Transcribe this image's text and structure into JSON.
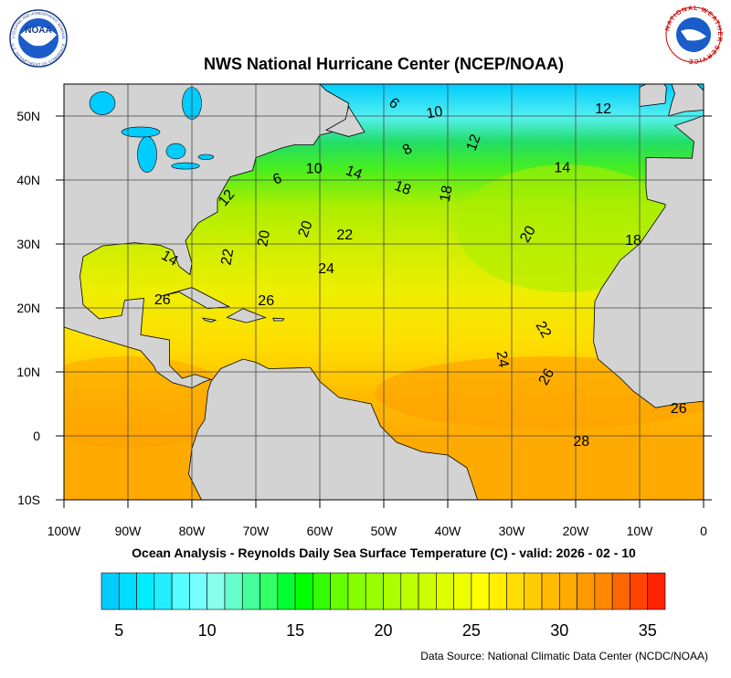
{
  "header": {
    "title": "NWS National Hurricane Center (NCEP/NOAA)",
    "noaa_logo_text": "NOAA",
    "noaa_ring_text": "NATIONAL OCEANIC AND ATMOSPHERIC ADMINISTRATION",
    "noaa_ring_text_bottom": "U.S. DEPARTMENT OF COMMERCE",
    "nws_ring_text": "NATIONAL WEATHER SERVICE"
  },
  "map": {
    "lat_labels": [
      "50N",
      "40N",
      "30N",
      "20N",
      "10N",
      "0",
      "10S"
    ],
    "lon_labels": [
      "100W",
      "90W",
      "80W",
      "70W",
      "60W",
      "50W",
      "40W",
      "30W",
      "20W",
      "10W",
      "0"
    ],
    "contour_labels": [
      "6",
      "10",
      "12",
      "8",
      "12",
      "10",
      "14",
      "6",
      "14",
      "18",
      "18",
      "12",
      "20",
      "22",
      "20",
      "20",
      "18",
      "22",
      "24",
      "26",
      "26",
      "22",
      "24",
      "26",
      "28",
      "26",
      "14"
    ],
    "caption": "Ocean Analysis - Reynolds Daily Sea Surface Temperature (C) - valid: 2026 - 02 - 10"
  },
  "colorbar": {
    "range": [
      4,
      36
    ],
    "ticks": [
      5,
      10,
      15,
      20,
      25,
      30,
      35
    ],
    "colors": [
      "#00ccff",
      "#00ddff",
      "#00eeff",
      "#22eeff",
      "#55ffff",
      "#77ffff",
      "#88ffee",
      "#66ffcc",
      "#44ff99",
      "#33ff66",
      "#00ff33",
      "#00ff00",
      "#33ff00",
      "#66ff00",
      "#88ff00",
      "#99ff00",
      "#aaff00",
      "#bbff00",
      "#ccff00",
      "#ddff00",
      "#eeff00",
      "#ffff00",
      "#ffee00",
      "#ffdd00",
      "#ffcc00",
      "#ffbb00",
      "#ffaa00",
      "#ff9900",
      "#ff8800",
      "#ff6600",
      "#ff4400",
      "#ff2200"
    ]
  },
  "footer": {
    "source": "Data Source: National Climatic Data Center (NCDC/NOAA)"
  }
}
